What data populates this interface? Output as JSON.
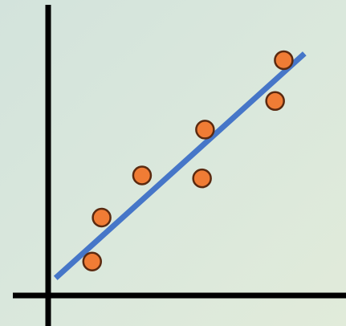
{
  "chart_data": {
    "type": "scatter",
    "title": "",
    "xlabel": "",
    "ylabel": "",
    "grid": false,
    "legend": "none",
    "tick_labels": "none",
    "xlim": [
      0,
      10
    ],
    "ylim": [
      0,
      10
    ],
    "series": [
      {
        "marker_color": "#f07c35",
        "marker_edge_color": "#5b2a10",
        "x": [
          1.48,
          3.16,
          1.8,
          5.28,
          5.18,
          7.64,
          7.93
        ],
        "y": [
          1.28,
          4.53,
          2.94,
          6.26,
          4.42,
          7.34,
          8.88
        ]
      }
    ],
    "trendline": {
      "color": "#4676c8",
      "x": [
        0.25,
        8.63
      ],
      "y": [
        0.66,
        9.13
      ]
    }
  },
  "colors": {
    "axis": "#000000"
  }
}
